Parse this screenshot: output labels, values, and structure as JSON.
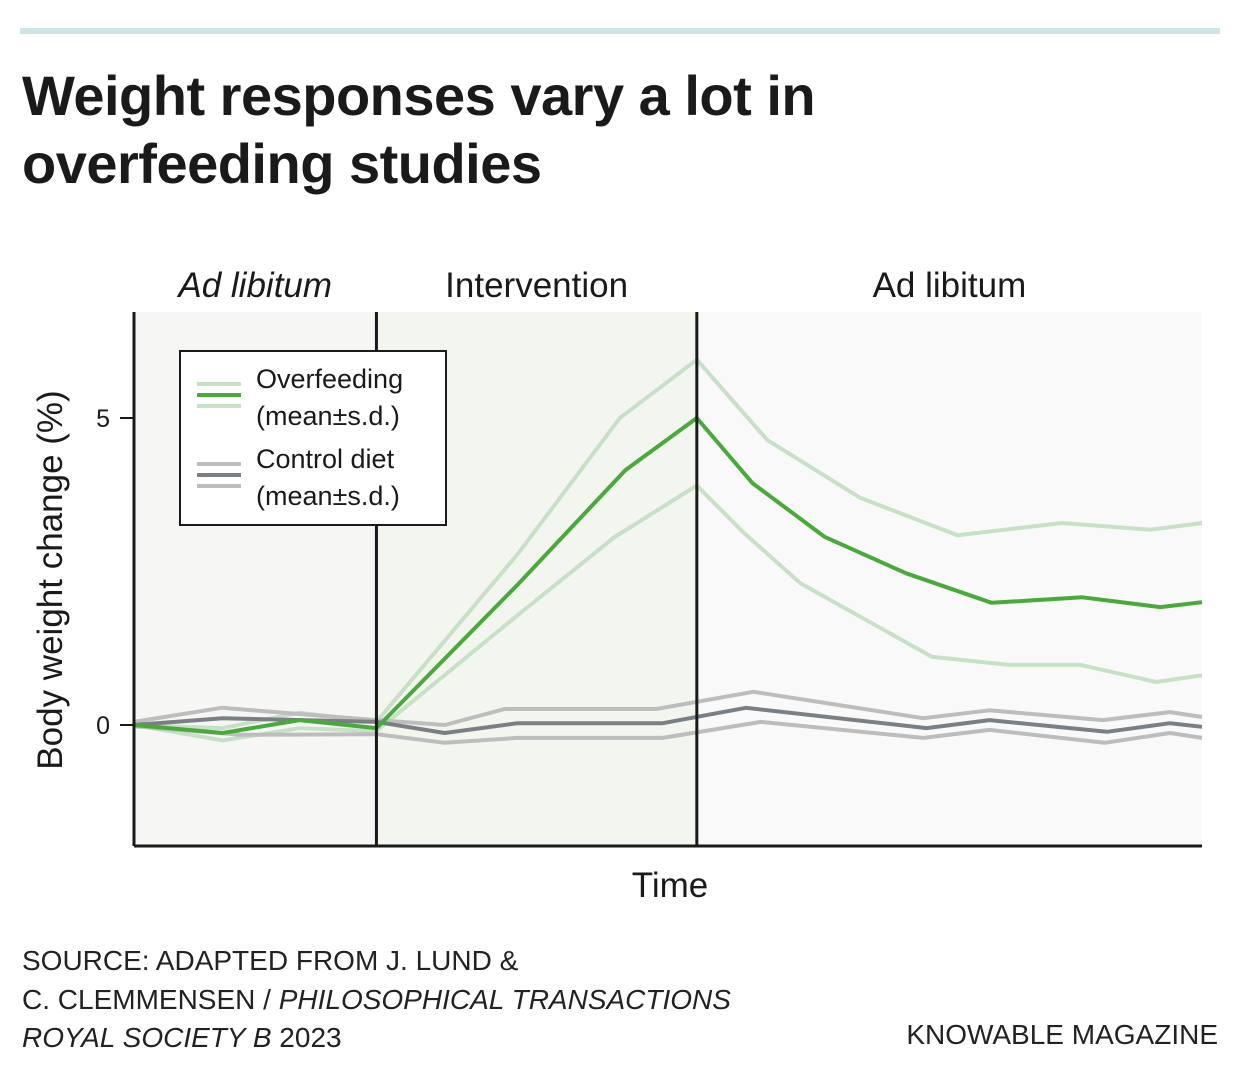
{
  "title": "Weight responses vary a lot in overfeeding studies",
  "source": {
    "line1": "SOURCE: ADAPTED FROM J. LUND &",
    "line2a": "C. CLEMMENSEN / ",
    "line2b": "PHILOSOPHICAL TRANSACTIONS",
    "line3a": "ROYAL SOCIETY B",
    "line3b": " 2023"
  },
  "brand": "KNOWABLE MAGAZINE",
  "colors": {
    "top_rule": "#cfe5e5",
    "overfeeding_mean": "#4aa83c",
    "overfeeding_sd": "#c8dfc8",
    "control_mean": "#7a7f84",
    "control_sd": "#bdbdbd",
    "phase1_bg": "#f6f7f5",
    "phase2_bg": "#f2f6ef",
    "phase3_bg": "#f9f9f9"
  },
  "chart_data": {
    "type": "line",
    "title": "Weight responses vary a lot in overfeeding studies",
    "xlabel": "Time",
    "ylabel": "Body weight change (%)",
    "xlim": [
      0,
      100
    ],
    "ylim": [
      -2,
      6.7
    ],
    "yticks": [
      0,
      5
    ],
    "grid": false,
    "legend_placement": "top-left",
    "phases": [
      {
        "label": "Ad libitum",
        "italic": true,
        "start": 0,
        "end": 22.7
      },
      {
        "label": "Intervention",
        "italic": false,
        "start": 22.7,
        "end": 52.7
      },
      {
        "label": "Ad libitum",
        "italic": false,
        "start": 52.7,
        "end": 100
      }
    ],
    "legend": [
      {
        "line1": "Overfeeding",
        "line2": "(mean±s.d.)"
      },
      {
        "line1": "Control diet",
        "line2": "(mean±s.d.)"
      }
    ],
    "series": [
      {
        "group": "Overfeeding",
        "role": "upper s.d.",
        "points": [
          [
            0,
            0
          ],
          [
            8.3,
            -0.05
          ],
          [
            15.5,
            0.2
          ],
          [
            22.7,
            0.05
          ],
          [
            36,
            2.8
          ],
          [
            45.5,
            5.0
          ],
          [
            52.7,
            5.95
          ],
          [
            59.3,
            4.64
          ],
          [
            68,
            3.7
          ],
          [
            77.1,
            3.09
          ],
          [
            86.9,
            3.29
          ],
          [
            95.2,
            3.18
          ],
          [
            100,
            3.29
          ]
        ]
      },
      {
        "group": "Overfeeding",
        "role": "lower s.d.",
        "points": [
          [
            0,
            0
          ],
          [
            8.3,
            -0.25
          ],
          [
            15.5,
            -0.05
          ],
          [
            22.7,
            -0.1
          ],
          [
            36,
            1.8
          ],
          [
            45,
            3.06
          ],
          [
            52.7,
            3.9
          ],
          [
            57.1,
            3.13
          ],
          [
            62.4,
            2.31
          ],
          [
            74.7,
            1.11
          ],
          [
            81.8,
            0.98
          ],
          [
            88.6,
            0.98
          ],
          [
            95.7,
            0.7
          ],
          [
            100,
            0.81
          ]
        ]
      },
      {
        "group": "Control diet",
        "role": "upper s.d.",
        "points": [
          [
            0,
            0.05
          ],
          [
            8.2,
            0.28
          ],
          [
            22.7,
            0.08
          ],
          [
            29.1,
            0
          ],
          [
            34.7,
            0.26
          ],
          [
            48.9,
            0.26
          ],
          [
            58,
            0.54
          ],
          [
            73.9,
            0.11
          ],
          [
            80.1,
            0.24
          ],
          [
            90.7,
            0.08
          ],
          [
            97,
            0.21
          ],
          [
            100,
            0.13
          ]
        ]
      },
      {
        "group": "Control diet",
        "role": "lower s.d.",
        "points": [
          [
            0,
            -0.02
          ],
          [
            10,
            -0.16
          ],
          [
            22.7,
            -0.15
          ],
          [
            29.1,
            -0.29
          ],
          [
            35.9,
            -0.21
          ],
          [
            49.5,
            -0.21
          ],
          [
            58.7,
            0.05
          ],
          [
            73.9,
            -0.21
          ],
          [
            80.1,
            -0.08
          ],
          [
            90.9,
            -0.29
          ],
          [
            97,
            -0.13
          ],
          [
            100,
            -0.21
          ]
        ]
      },
      {
        "group": "Control diet",
        "role": "mean",
        "points": [
          [
            0,
            0
          ],
          [
            8.3,
            0.11
          ],
          [
            22.7,
            0.05
          ],
          [
            29.1,
            -0.13
          ],
          [
            35.9,
            0.03
          ],
          [
            49.5,
            0.03
          ],
          [
            57.3,
            0.28
          ],
          [
            74.2,
            -0.05
          ],
          [
            80.1,
            0.08
          ],
          [
            91.1,
            -0.11
          ],
          [
            97,
            0.03
          ],
          [
            100,
            -0.03
          ]
        ]
      },
      {
        "group": "Overfeeding",
        "role": "mean",
        "points": [
          [
            0,
            0
          ],
          [
            8.3,
            -0.13
          ],
          [
            15.5,
            0.08
          ],
          [
            22.7,
            -0.05
          ],
          [
            36,
            2.3
          ],
          [
            46,
            4.15
          ],
          [
            52.7,
            5.0
          ],
          [
            57.9,
            3.94
          ],
          [
            64.7,
            3.06
          ],
          [
            72.3,
            2.47
          ],
          [
            80.3,
            1.99
          ],
          [
            88.8,
            2.08
          ],
          [
            96.1,
            1.92
          ],
          [
            100,
            2.0
          ]
        ]
      }
    ]
  }
}
